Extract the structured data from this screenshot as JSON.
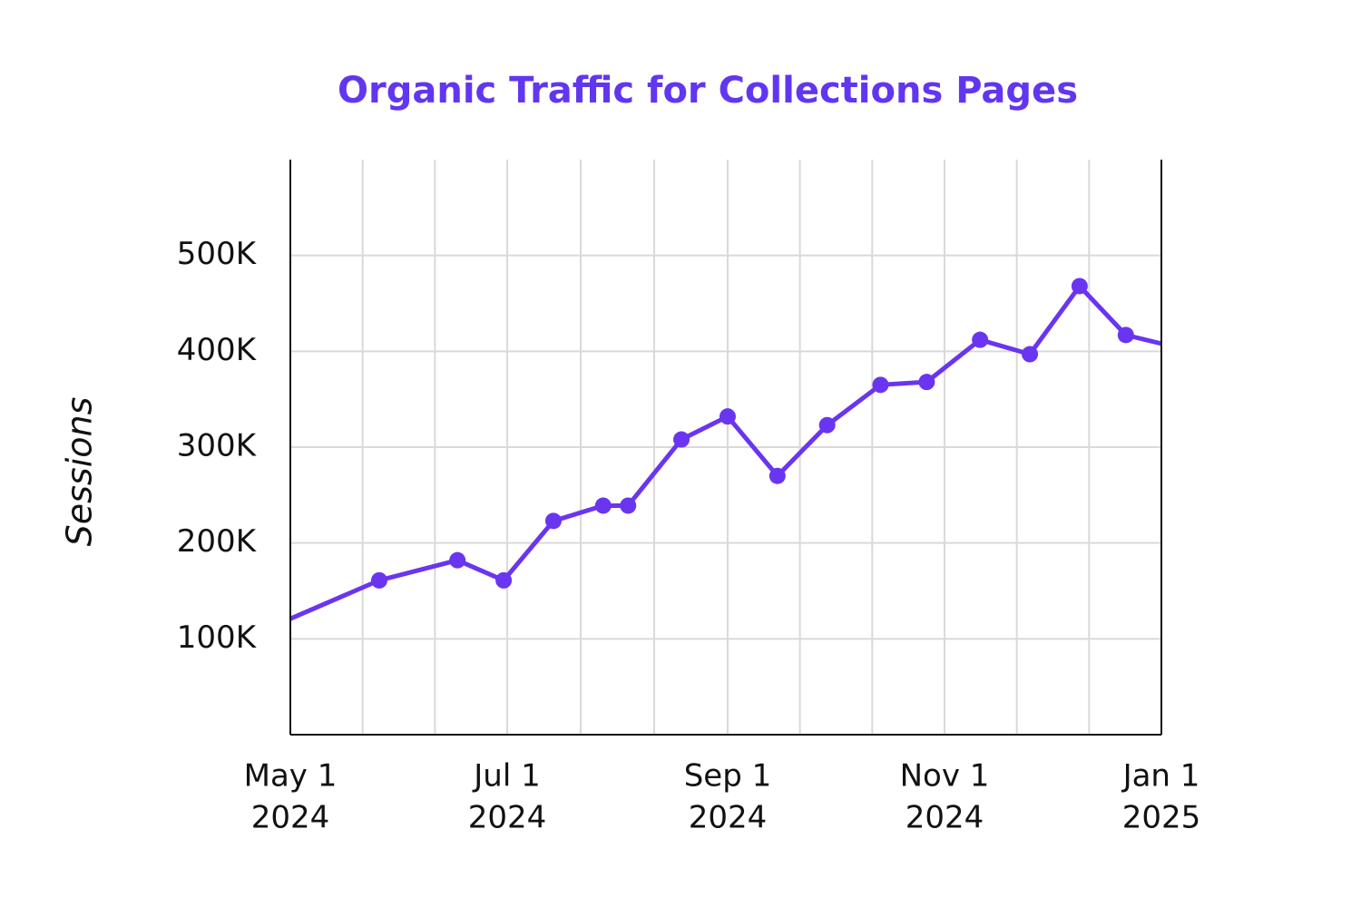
{
  "chart_data": {
    "type": "line",
    "title": "Organic Traffic for Collections Pages",
    "y_label": "Sessions",
    "title_color": "#6236f0",
    "x": [
      "2024-05-01",
      "2024-05-26",
      "2024-06-17",
      "2024-06-30",
      "2024-07-14",
      "2024-07-28",
      "2024-08-04",
      "2024-08-19",
      "2024-09-01",
      "2024-09-15",
      "2024-09-29",
      "2024-10-14",
      "2024-10-27",
      "2024-11-11",
      "2024-11-25",
      "2024-12-09",
      "2024-12-22",
      "2025-01-01"
    ],
    "series": [
      {
        "name": "Sessions",
        "color": "#6a35f0",
        "values": [
          121000,
          161000,
          182000,
          161000,
          223000,
          239000,
          239000,
          308000,
          332000,
          270000,
          323000,
          365000,
          368000,
          412000,
          397000,
          468000,
          417000,
          408000
        ]
      }
    ],
    "xlim": [
      "2024-05-01",
      "2025-01-01"
    ],
    "xticks": [
      {
        "value": "2024-05-01",
        "label": [
          "May 1",
          "2024"
        ]
      },
      {
        "value": "2024-07-01",
        "label": [
          "Jul 1",
          "2024"
        ]
      },
      {
        "value": "2024-09-01",
        "label": [
          "Sep 1",
          "2024"
        ]
      },
      {
        "value": "2024-11-01",
        "label": [
          "Nov 1",
          "2024"
        ]
      },
      {
        "value": "2025-01-01",
        "label": [
          "Jan 1",
          "2025"
        ]
      }
    ],
    "ylim": [
      0,
      600000
    ],
    "yticks": [
      {
        "value": 100000,
        "label": "100K"
      },
      {
        "value": 200000,
        "label": "200K"
      },
      {
        "value": 300000,
        "label": "300K"
      },
      {
        "value": 400000,
        "label": "400K"
      },
      {
        "value": 500000,
        "label": "500K"
      }
    ],
    "grid": true
  }
}
